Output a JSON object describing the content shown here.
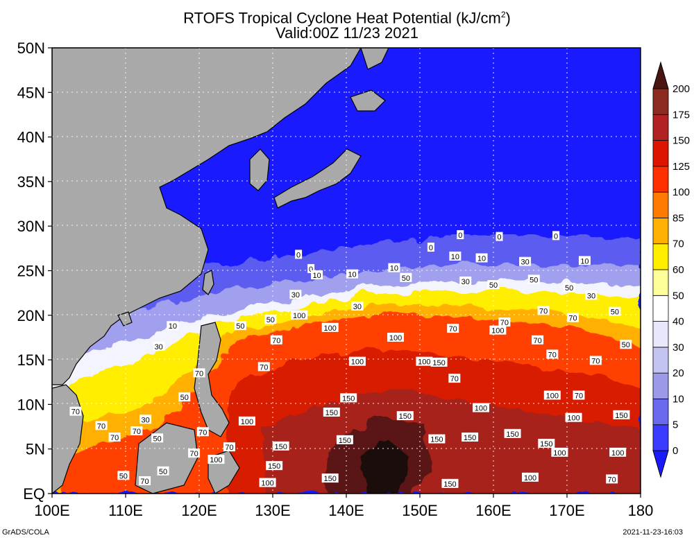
{
  "title": {
    "line1": "RTOFS Tropical Cyclone Heat Potential (kJ/cm",
    "superscript": "2",
    "line1_end": ")",
    "line2": "Valid:00Z 11/23 2021"
  },
  "axes": {
    "x_ticks": [
      "100E",
      "110E",
      "120E",
      "130E",
      "140E",
      "150E",
      "160E",
      "170E",
      "180"
    ],
    "y_ticks": [
      "EQ",
      "5N",
      "10N",
      "15N",
      "20N",
      "25N",
      "30N",
      "35N",
      "40N",
      "45N",
      "50N"
    ],
    "lon_range": [
      100,
      180
    ],
    "lat_range": [
      0,
      50
    ],
    "grid": true
  },
  "colorbar": {
    "labels": [
      "0",
      "5",
      "10",
      "20",
      "30",
      "40",
      "50",
      "60",
      "70",
      "85",
      "100",
      "125",
      "150",
      "175",
      "200"
    ],
    "colors": [
      "#1a1aff",
      "#3b3bff",
      "#6a6aef",
      "#9a9ae8",
      "#c4c4f2",
      "#e8e8fa",
      "#ffffff",
      "#ffff99",
      "#ffee00",
      "#ffb000",
      "#ff7a00",
      "#ff3000",
      "#dd1400",
      "#b22222",
      "#8b2a20",
      "#4a1410"
    ]
  },
  "contour_labels": [
    {
      "text": "0",
      "lon": 133.5,
      "lat": 26.8
    },
    {
      "text": "0",
      "lon": 151.5,
      "lat": 27.6
    },
    {
      "text": "0",
      "lon": 155.5,
      "lat": 29
    },
    {
      "text": "0",
      "lon": 160.8,
      "lat": 28.8
    },
    {
      "text": "0",
      "lon": 168.5,
      "lat": 28.9
    },
    {
      "text": "0",
      "lon": 135.2,
      "lat": 25.2
    },
    {
      "text": "10",
      "lon": 136.0,
      "lat": 24.5
    },
    {
      "text": "10",
      "lon": 140.8,
      "lat": 24.6
    },
    {
      "text": "10",
      "lon": 146.5,
      "lat": 25.3
    },
    {
      "text": "10",
      "lon": 154.8,
      "lat": 26.6
    },
    {
      "text": "10",
      "lon": 158.4,
      "lat": 26.4
    },
    {
      "text": "10",
      "lon": 172.4,
      "lat": 26.1
    },
    {
      "text": "10",
      "lon": 116.4,
      "lat": 18.8
    },
    {
      "text": "30",
      "lon": 133.1,
      "lat": 22.3
    },
    {
      "text": "30",
      "lon": 156.2,
      "lat": 23.8
    },
    {
      "text": "30",
      "lon": 164.3,
      "lat": 26.0
    },
    {
      "text": "30",
      "lon": 173.3,
      "lat": 22.2
    },
    {
      "text": "30",
      "lon": 114.5,
      "lat": 16.5
    },
    {
      "text": "30",
      "lon": 112.7,
      "lat": 8.3
    },
    {
      "text": "30",
      "lon": 141.5,
      "lat": 21.0
    },
    {
      "text": "50",
      "lon": 148.1,
      "lat": 24.2
    },
    {
      "text": "50",
      "lon": 160.0,
      "lat": 23.4
    },
    {
      "text": "50",
      "lon": 165.5,
      "lat": 24.0
    },
    {
      "text": "50",
      "lon": 170.3,
      "lat": 23.1
    },
    {
      "text": "50",
      "lon": 176.5,
      "lat": 20.4
    },
    {
      "text": "50",
      "lon": 178.0,
      "lat": 16.7
    },
    {
      "text": "50",
      "lon": 129.7,
      "lat": 19.5
    },
    {
      "text": "50",
      "lon": 125.6,
      "lat": 18.8
    },
    {
      "text": "50",
      "lon": 118.0,
      "lat": 10.8
    },
    {
      "text": "50",
      "lon": 114.3,
      "lat": 6.2
    },
    {
      "text": "50",
      "lon": 115.1,
      "lat": 2.5
    },
    {
      "text": "50",
      "lon": 109.7,
      "lat": 2.0
    },
    {
      "text": "70",
      "lon": 130.5,
      "lat": 17.2
    },
    {
      "text": "70",
      "lon": 128.8,
      "lat": 14.2
    },
    {
      "text": "70",
      "lon": 154.7,
      "lat": 12.9
    },
    {
      "text": "70",
      "lon": 166.0,
      "lat": 17.2
    },
    {
      "text": "70",
      "lon": 168.0,
      "lat": 15.6
    },
    {
      "text": "70",
      "lon": 170.8,
      "lat": 19.7
    },
    {
      "text": "70",
      "lon": 173.9,
      "lat": 14.9
    },
    {
      "text": "70",
      "lon": 161.5,
      "lat": 19.2
    },
    {
      "text": "70",
      "lon": 154.5,
      "lat": 18.5
    },
    {
      "text": "70",
      "lon": 171.6,
      "lat": 11.0
    },
    {
      "text": "70",
      "lon": 120.0,
      "lat": 13.5
    },
    {
      "text": "70",
      "lon": 111.5,
      "lat": 7.0
    },
    {
      "text": "70",
      "lon": 108.5,
      "lat": 6.3
    },
    {
      "text": "70",
      "lon": 106.7,
      "lat": 7.6
    },
    {
      "text": "70",
      "lon": 103.2,
      "lat": 9.2
    },
    {
      "text": "70",
      "lon": 120.5,
      "lat": 6.9
    },
    {
      "text": "70",
      "lon": 119.3,
      "lat": 4.5
    },
    {
      "text": "70",
      "lon": 124.1,
      "lat": 5.2
    },
    {
      "text": "70",
      "lon": 112.6,
      "lat": 1.4
    },
    {
      "text": "70",
      "lon": 176.1,
      "lat": 1.6
    },
    {
      "text": "70",
      "lon": 166.8,
      "lat": 20.5
    },
    {
      "text": "100",
      "lon": 133.6,
      "lat": 20.0
    },
    {
      "text": "100",
      "lon": 137.8,
      "lat": 18.6
    },
    {
      "text": "100",
      "lon": 146.7,
      "lat": 17.5
    },
    {
      "text": "100",
      "lon": 160.6,
      "lat": 18.3
    },
    {
      "text": "100",
      "lon": 141.5,
      "lat": 14.8
    },
    {
      "text": "100",
      "lon": 150.6,
      "lat": 14.8
    },
    {
      "text": "100",
      "lon": 168.0,
      "lat": 11.0
    },
    {
      "text": "100",
      "lon": 158.3,
      "lat": 9.6
    },
    {
      "text": "100",
      "lon": 170.9,
      "lat": 8.5
    },
    {
      "text": "100",
      "lon": 126.5,
      "lat": 8.1
    },
    {
      "text": "100",
      "lon": 122.3,
      "lat": 3.8
    },
    {
      "text": "100",
      "lon": 176.9,
      "lat": 4.6
    },
    {
      "text": "100",
      "lon": 169.0,
      "lat": 4.6
    },
    {
      "text": "100",
      "lon": 165.0,
      "lat": 1.8
    },
    {
      "text": "100",
      "lon": 129.3,
      "lat": 1.2
    },
    {
      "text": "150",
      "lon": 152.6,
      "lat": 14.7
    },
    {
      "text": "150",
      "lon": 140.3,
      "lat": 10.7
    },
    {
      "text": "150",
      "lon": 138.0,
      "lat": 9.1
    },
    {
      "text": "150",
      "lon": 148.0,
      "lat": 8.7
    },
    {
      "text": "150",
      "lon": 139.8,
      "lat": 6.0
    },
    {
      "text": "150",
      "lon": 131.1,
      "lat": 5.3
    },
    {
      "text": "150",
      "lon": 152.3,
      "lat": 6.1
    },
    {
      "text": "150",
      "lon": 156.8,
      "lat": 6.3
    },
    {
      "text": "150",
      "lon": 162.6,
      "lat": 6.7
    },
    {
      "text": "150",
      "lon": 167.2,
      "lat": 5.6
    },
    {
      "text": "150",
      "lon": 177.4,
      "lat": 8.8
    },
    {
      "text": "150",
      "lon": 130.2,
      "lat": 3.1
    },
    {
      "text": "150",
      "lon": 137.8,
      "lat": 1.7
    },
    {
      "text": "150",
      "lon": 154.1,
      "lat": 1.1
    }
  ],
  "footer": {
    "left": "GrADS/COLA",
    "right": "2021-11-23-16:03"
  }
}
